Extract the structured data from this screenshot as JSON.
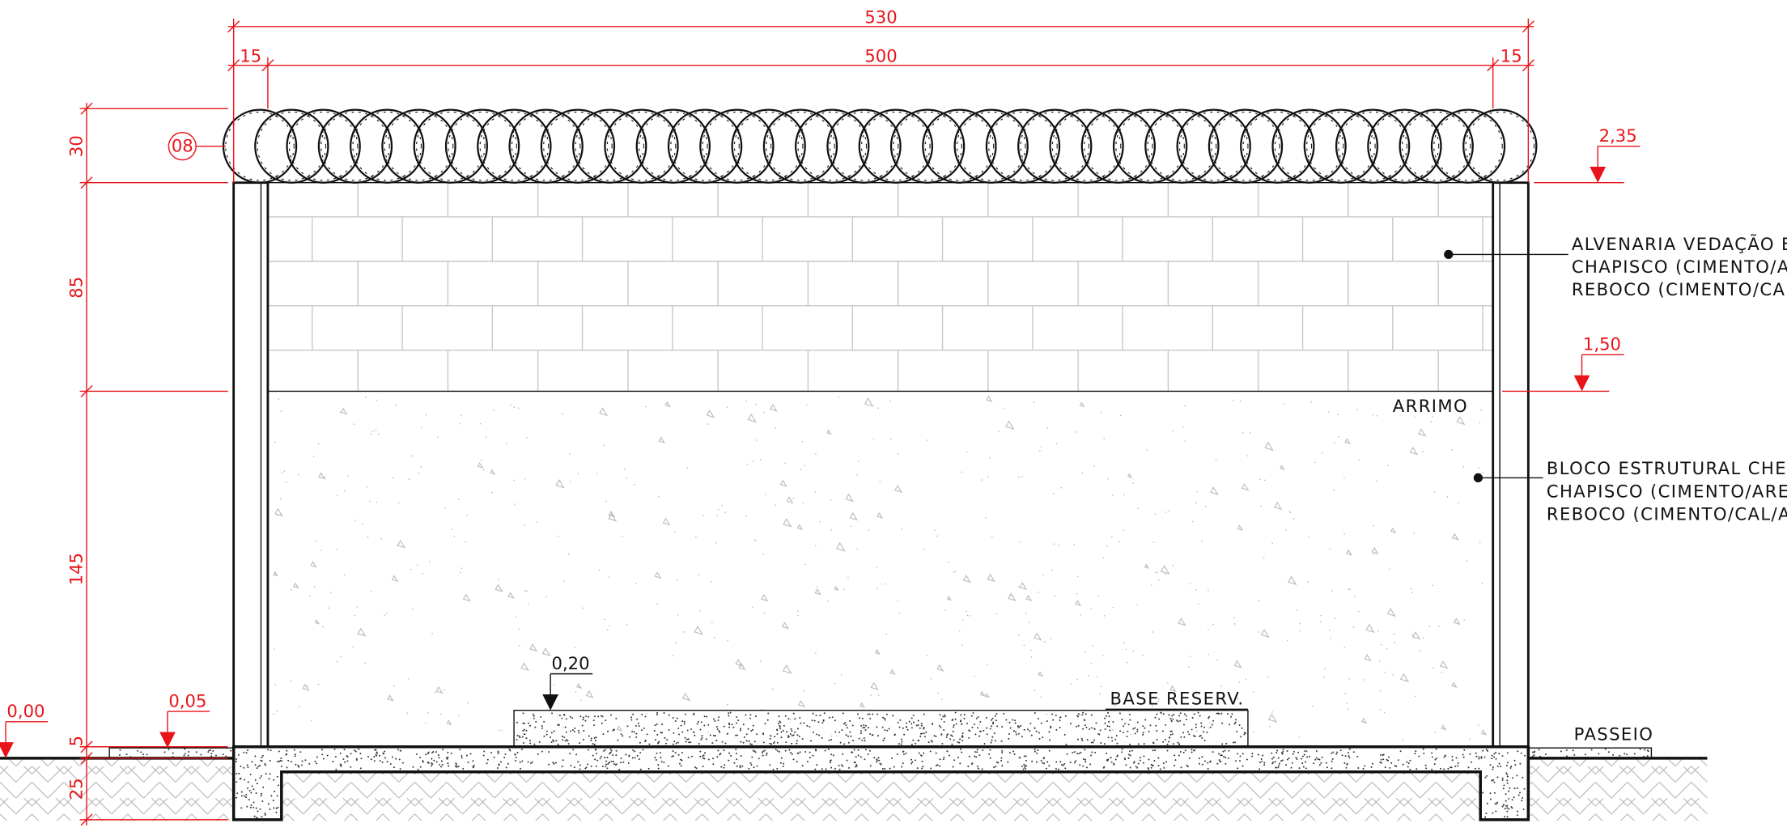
{
  "dimensions": {
    "overall_width": "530",
    "inner_width": "500",
    "left_pillar": "15",
    "right_pillar": "15",
    "wire_height": "30",
    "masonry_height": "85",
    "retaining_height": "145",
    "sidewalk_step": "5",
    "foundation_depth": "25"
  },
  "levels": [
    "2,35",
    "1,50",
    "0,20",
    "0,05",
    "0,00"
  ],
  "labels": {
    "wire_ref": "08",
    "arrimo": "ARRIMO",
    "base": "BASE RESERV.",
    "passeio": "PASSEIO"
  },
  "notes": [
    [
      "ALVENARIA VEDAÇÃO E",
      "CHAPISCO (CIMENTO/A",
      "REBOCO (CIMENTO/CAL"
    ],
    [
      "BLOCO ESTRUTURAL CHEI",
      "CHAPISCO (CIMENTO/AREI",
      "REBOCO (CIMENTO/CAL/A"
    ]
  ]
}
